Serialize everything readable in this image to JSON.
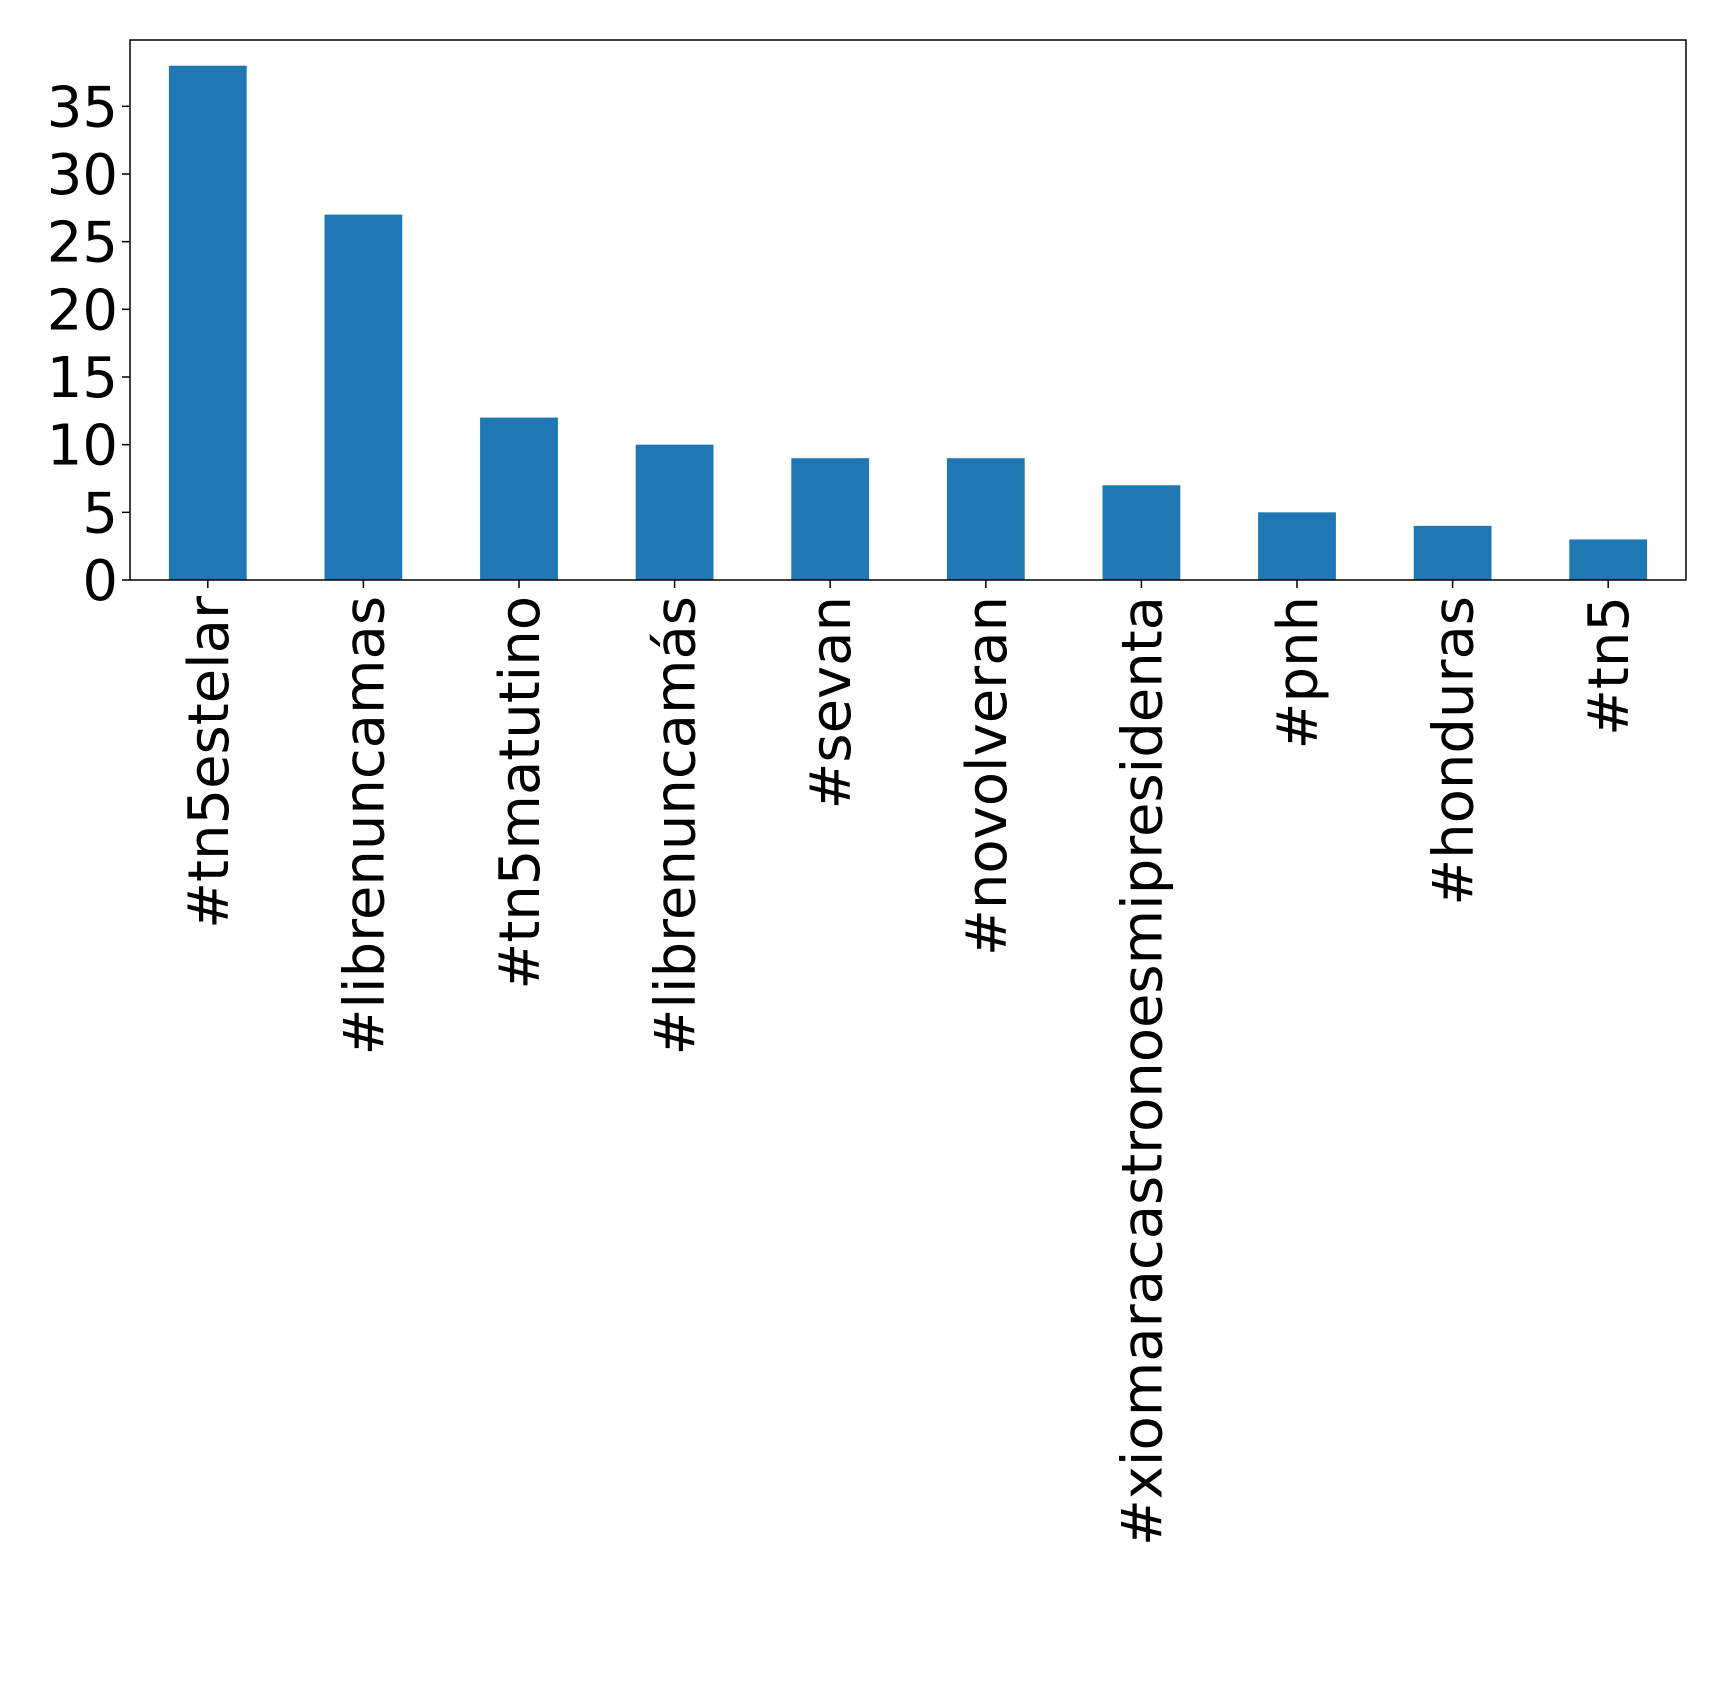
{
  "chart_data": {
    "type": "bar",
    "title": "",
    "xlabel": "",
    "ylabel": "",
    "categories": [
      "#tn5estelar",
      "#librenuncamas",
      "#tn5matutino",
      "#librenuncamás",
      "#sevan",
      "#novolveran",
      "#xiomaracastronoesmipresidenta",
      "#pnh",
      "#honduras",
      "#tn5"
    ],
    "values": [
      38,
      27,
      12,
      10,
      9,
      9,
      7,
      5,
      4,
      3
    ],
    "ylim": [
      0,
      39.9
    ],
    "yticks": [
      0,
      5,
      10,
      15,
      20,
      25,
      30,
      35
    ],
    "bar_color": "#1f77b4",
    "grid": false,
    "legend": "none"
  }
}
